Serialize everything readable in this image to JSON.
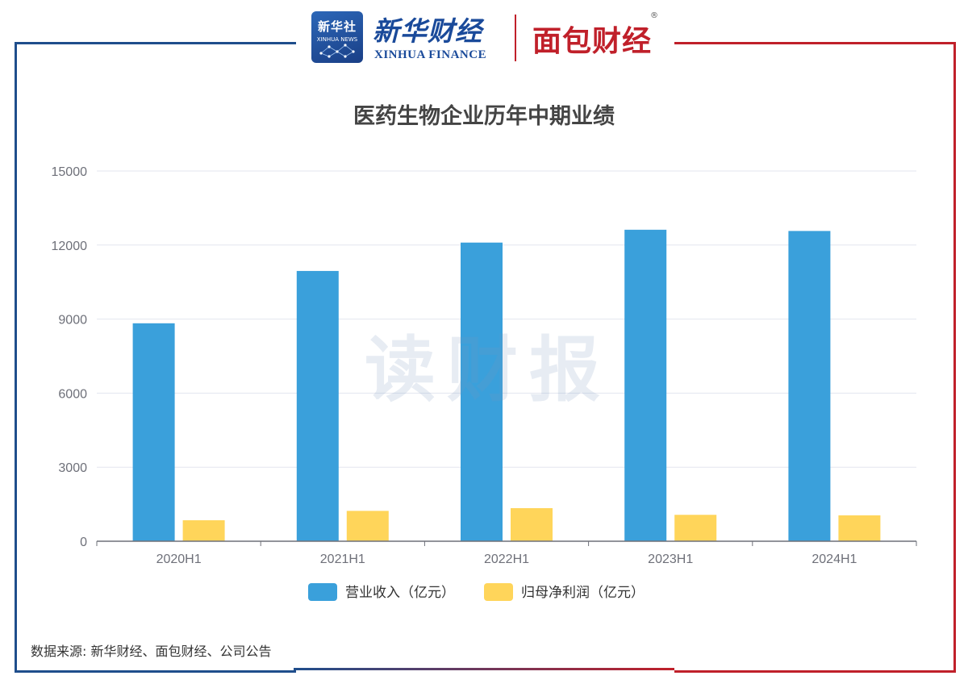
{
  "header": {
    "xinhua_logo_text": "新华社",
    "xinhua_logo_sub": "XINHUA NEWS",
    "xf_name": "新华财经",
    "xf_en": "XINHUA FINANCE",
    "mb_name": "面包财经",
    "mb_reg": "®"
  },
  "watermark": "读财报",
  "source": "数据来源: 新华财经、面包财经、公司公告",
  "colors": {
    "revenue": "#3aa0db",
    "profit": "#ffd55a",
    "axis": "#6e7079",
    "grid": "#e3e6ef"
  },
  "chart_data": {
    "type": "bar",
    "title": "医药生物企业历年中期业绩",
    "categories": [
      "2020H1",
      "2021H1",
      "2022H1",
      "2023H1",
      "2024H1"
    ],
    "series": [
      {
        "name": "营业收入（亿元）",
        "values": [
          8830,
          10950,
          12100,
          12620,
          12570
        ]
      },
      {
        "name": "归母净利润（亿元）",
        "values": [
          850,
          1230,
          1340,
          1070,
          1050
        ]
      }
    ],
    "ylim": [
      0,
      15000
    ],
    "yticks": [
      "0",
      "3000",
      "6000",
      "9000",
      "12000",
      "15000"
    ],
    "grid": true,
    "legend": "bottom"
  }
}
